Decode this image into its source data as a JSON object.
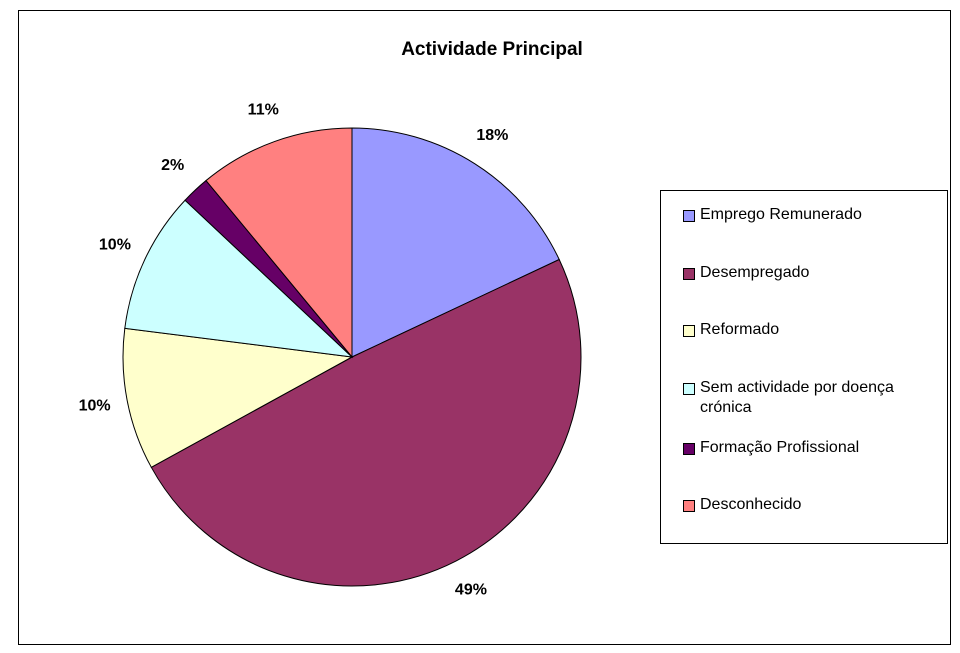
{
  "chart_data": {
    "type": "pie",
    "title": "Actividade Principal",
    "categories": [
      "Emprego Remunerado",
      "Desempregado",
      "Reformado",
      "Sem actividade por doença crónica",
      "Formação Profissional",
      "Desconhecido"
    ],
    "values": [
      18,
      49,
      10,
      10,
      2,
      11
    ],
    "value_labels": [
      "18%",
      "49%",
      "10%",
      "10%",
      "2%",
      "11%"
    ],
    "colors": [
      "#9999ff",
      "#993366",
      "#ffffcc",
      "#ccffff",
      "#660066",
      "#ff8080"
    ],
    "legend": "right"
  }
}
